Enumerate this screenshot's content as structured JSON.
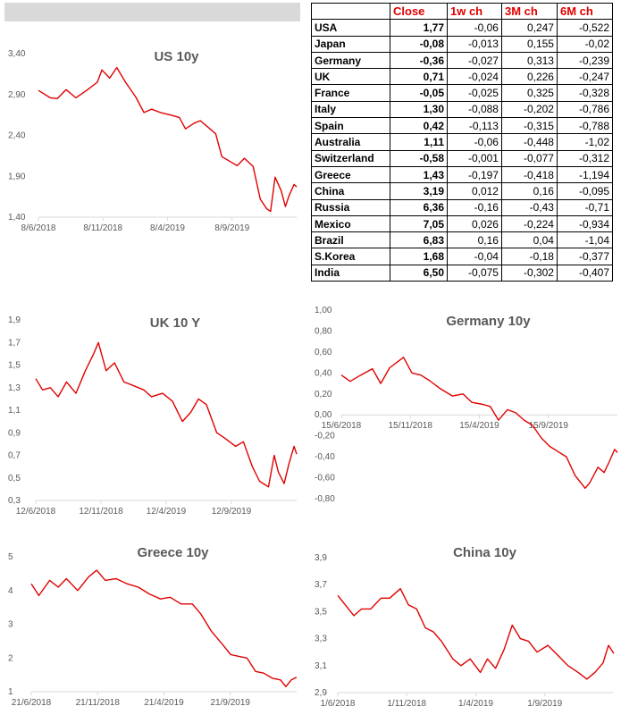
{
  "table": {
    "headers": [
      "",
      "Close",
      "1w ch",
      "3M ch",
      "6M ch"
    ],
    "rows": [
      [
        "USA",
        "1,77",
        "-0,06",
        "0,247",
        "-0,522"
      ],
      [
        "Japan",
        "-0,08",
        "-0,013",
        "0,155",
        "-0,02"
      ],
      [
        "Germany",
        "-0,36",
        "-0,027",
        "0,313",
        "-0,239"
      ],
      [
        "UK",
        "0,71",
        "-0,024",
        "0,226",
        "-0,247"
      ],
      [
        "France",
        "-0,05",
        "-0,025",
        "0,325",
        "-0,328"
      ],
      [
        "Italy",
        "1,30",
        "-0,088",
        "-0,202",
        "-0,786"
      ],
      [
        "Spain",
        "0,42",
        "-0,113",
        "-0,315",
        "-0,788"
      ],
      [
        "Australia",
        "1,11",
        "-0,06",
        "-0,448",
        "-1,02"
      ],
      [
        "Switzerland",
        "-0,58",
        "-0,001",
        "-0,077",
        "-0,312"
      ],
      [
        "Greece",
        "1,43",
        "-0,197",
        "-0,418",
        "-1,194"
      ],
      [
        "China",
        "3,19",
        "0,012",
        "0,16",
        "-0,095"
      ],
      [
        "Russia",
        "6,36",
        "-0,16",
        "-0,43",
        "-0,71"
      ],
      [
        "Mexico",
        "7,05",
        "0,026",
        "-0,224",
        "-0,934"
      ],
      [
        "Brazil",
        "6,83",
        "0,16",
        "0,04",
        "-1,04"
      ],
      [
        "S.Korea",
        "1,68",
        "-0,04",
        "-0,18",
        "-0,377"
      ],
      [
        "India",
        "6,50",
        "-0,075",
        "-0,302",
        "-0,407"
      ]
    ]
  },
  "colors": {
    "line": "#e00000",
    "header_text": "#e00000",
    "title_text": "#595959",
    "axis": "#d9d9d9",
    "top_bar": "#d9d9d9"
  },
  "chart_data": [
    {
      "id": "us",
      "type": "line",
      "title": "US 10y",
      "xlabel": "",
      "ylabel": "",
      "ylim": [
        1.4,
        3.4
      ],
      "y_ticks": [
        "1,40",
        "1,90",
        "2,40",
        "2,90",
        "3,40"
      ],
      "x_ticks": [
        "8/6/2018",
        "8/11/2018",
        "8/4/2019",
        "8/9/2019"
      ],
      "x_range": [
        "2018-06-08",
        "2019-10-25"
      ],
      "series": [
        {
          "x": [
            "2018-06-08",
            "2018-07-01",
            "2018-07-15",
            "2018-08-01",
            "2018-08-20",
            "2018-09-10",
            "2018-10-01",
            "2018-10-10",
            "2018-10-25",
            "2018-11-08",
            "2018-11-25",
            "2018-12-15",
            "2018-12-31",
            "2019-01-15",
            "2019-02-01",
            "2019-02-20",
            "2019-03-10",
            "2019-03-22",
            "2019-04-08",
            "2019-04-20",
            "2019-05-05",
            "2019-05-20",
            "2019-06-01",
            "2019-06-20",
            "2019-07-01",
            "2019-07-15",
            "2019-08-01",
            "2019-08-15",
            "2019-08-28",
            "2019-09-04",
            "2019-09-13",
            "2019-09-25",
            "2019-10-03",
            "2019-10-10",
            "2019-10-20",
            "2019-10-25"
          ],
          "values": [
            2.95,
            2.86,
            2.85,
            2.96,
            2.86,
            2.95,
            3.05,
            3.2,
            3.1,
            3.23,
            3.05,
            2.87,
            2.68,
            2.72,
            2.68,
            2.65,
            2.62,
            2.48,
            2.55,
            2.58,
            2.5,
            2.42,
            2.14,
            2.07,
            2.03,
            2.12,
            2.02,
            1.62,
            1.5,
            1.47,
            1.89,
            1.72,
            1.53,
            1.66,
            1.8,
            1.77
          ]
        }
      ]
    },
    {
      "id": "uk",
      "type": "line",
      "title": "UK 10 Y",
      "xlabel": "",
      "ylabel": "",
      "ylim": [
        0.3,
        1.9
      ],
      "y_ticks": [
        "0,3",
        "0,5",
        "0,7",
        "0,9",
        "1,1",
        "1,3",
        "1,5",
        "1,7",
        "1,9"
      ],
      "x_ticks": [
        "12/6/2018",
        "12/11/2018",
        "12/4/2019",
        "12/9/2019"
      ],
      "x_range": [
        "2018-06-12",
        "2019-10-25"
      ],
      "series": [
        {
          "x": [
            "2018-06-12",
            "2018-06-25",
            "2018-07-10",
            "2018-07-25",
            "2018-08-10",
            "2018-08-28",
            "2018-09-15",
            "2018-10-01",
            "2018-10-10",
            "2018-10-25",
            "2018-11-10",
            "2018-11-28",
            "2018-12-15",
            "2019-01-05",
            "2019-01-20",
            "2019-02-10",
            "2019-03-01",
            "2019-03-20",
            "2019-04-05",
            "2019-04-20",
            "2019-05-05",
            "2019-05-25",
            "2019-06-10",
            "2019-06-30",
            "2019-07-15",
            "2019-08-01",
            "2019-08-15",
            "2019-09-01",
            "2019-09-12",
            "2019-09-20",
            "2019-10-01",
            "2019-10-10",
            "2019-10-20",
            "2019-10-25"
          ],
          "values": [
            1.38,
            1.28,
            1.3,
            1.22,
            1.35,
            1.25,
            1.45,
            1.6,
            1.7,
            1.45,
            1.52,
            1.35,
            1.32,
            1.28,
            1.22,
            1.25,
            1.18,
            1.0,
            1.08,
            1.2,
            1.15,
            0.9,
            0.85,
            0.78,
            0.82,
            0.6,
            0.47,
            0.42,
            0.7,
            0.55,
            0.45,
            0.62,
            0.78,
            0.71
          ]
        }
      ]
    },
    {
      "id": "germany",
      "type": "line",
      "title": "Germany 10y",
      "xlabel": "",
      "ylabel": "",
      "ylim": [
        -0.8,
        1.0
      ],
      "y_ticks": [
        "-0,80",
        "-0,60",
        "-0,40",
        "-0,20",
        "0,00",
        "0,20",
        "0,40",
        "0,60",
        "0,80",
        "1,00"
      ],
      "x_ticks": [
        "15/6/2018",
        "15/11/2018",
        "15/4/2019",
        "15/9/2019"
      ],
      "x_range": [
        "2018-06-15",
        "2019-10-25"
      ],
      "series": [
        {
          "x": [
            "2018-06-15",
            "2018-07-01",
            "2018-07-20",
            "2018-08-10",
            "2018-08-25",
            "2018-09-10",
            "2018-10-05",
            "2018-10-20",
            "2018-11-05",
            "2018-11-20",
            "2018-12-10",
            "2019-01-01",
            "2019-01-20",
            "2019-02-05",
            "2019-02-25",
            "2019-03-10",
            "2019-03-25",
            "2019-04-10",
            "2019-04-25",
            "2019-05-10",
            "2019-05-25",
            "2019-06-10",
            "2019-06-25",
            "2019-07-10",
            "2019-07-25",
            "2019-08-10",
            "2019-08-28",
            "2019-09-05",
            "2019-09-20",
            "2019-10-01",
            "2019-10-10",
            "2019-10-20",
            "2019-10-25"
          ],
          "values": [
            0.38,
            0.32,
            0.38,
            0.44,
            0.3,
            0.45,
            0.55,
            0.4,
            0.38,
            0.33,
            0.25,
            0.18,
            0.2,
            0.12,
            0.1,
            0.08,
            -0.05,
            0.05,
            0.02,
            -0.05,
            -0.1,
            -0.22,
            -0.3,
            -0.35,
            -0.4,
            -0.58,
            -0.7,
            -0.65,
            -0.5,
            -0.55,
            -0.45,
            -0.33,
            -0.36
          ]
        }
      ]
    },
    {
      "id": "greece",
      "type": "line",
      "title": "Greece 10y",
      "xlabel": "",
      "ylabel": "",
      "ylim": [
        1,
        5
      ],
      "y_ticks": [
        "1",
        "2",
        "3",
        "4",
        "5"
      ],
      "x_ticks": [
        "21/6/2018",
        "21/11/2018",
        "21/4/2019",
        "21/9/2019"
      ],
      "x_range": [
        "2018-06-21",
        "2019-10-25"
      ],
      "series": [
        {
          "x": [
            "2018-06-21",
            "2018-07-05",
            "2018-07-25",
            "2018-08-10",
            "2018-08-25",
            "2018-09-15",
            "2018-10-05",
            "2018-10-20",
            "2018-11-05",
            "2018-11-25",
            "2018-12-15",
            "2019-01-05",
            "2019-01-25",
            "2019-02-15",
            "2019-03-05",
            "2019-03-25",
            "2019-04-15",
            "2019-05-01",
            "2019-05-20",
            "2019-06-10",
            "2019-06-25",
            "2019-07-10",
            "2019-07-25",
            "2019-08-10",
            "2019-08-25",
            "2019-09-10",
            "2019-09-25",
            "2019-10-05",
            "2019-10-15",
            "2019-10-25"
          ],
          "values": [
            4.2,
            3.85,
            4.3,
            4.1,
            4.35,
            4.0,
            4.4,
            4.6,
            4.3,
            4.35,
            4.2,
            4.1,
            3.9,
            3.75,
            3.8,
            3.6,
            3.6,
            3.3,
            2.8,
            2.4,
            2.1,
            2.05,
            2.0,
            1.6,
            1.55,
            1.4,
            1.35,
            1.15,
            1.35,
            1.43
          ]
        }
      ]
    },
    {
      "id": "china",
      "type": "line",
      "title": "China 10y",
      "xlabel": "",
      "ylabel": "",
      "ylim": [
        2.9,
        3.9
      ],
      "y_ticks": [
        "2,9",
        "3,1",
        "3,3",
        "3,5",
        "3,7",
        "3,9"
      ],
      "x_ticks": [
        "1/6/2018",
        "1/11/2018",
        "1/4/2019",
        "1/9/2019"
      ],
      "x_range": [
        "2018-06-01",
        "2019-10-25"
      ],
      "series": [
        {
          "x": [
            "2018-06-01",
            "2018-06-15",
            "2018-07-01",
            "2018-07-15",
            "2018-08-01",
            "2018-08-20",
            "2018-09-05",
            "2018-09-25",
            "2018-10-10",
            "2018-10-25",
            "2018-11-10",
            "2018-11-25",
            "2018-12-10",
            "2018-12-31",
            "2019-01-15",
            "2019-02-01",
            "2019-02-20",
            "2019-03-05",
            "2019-03-20",
            "2019-04-05",
            "2019-04-20",
            "2019-05-05",
            "2019-05-20",
            "2019-06-05",
            "2019-06-25",
            "2019-07-15",
            "2019-08-01",
            "2019-08-20",
            "2019-09-05",
            "2019-09-20",
            "2019-10-05",
            "2019-10-15",
            "2019-10-25"
          ],
          "values": [
            3.62,
            3.55,
            3.47,
            3.52,
            3.52,
            3.6,
            3.6,
            3.67,
            3.55,
            3.52,
            3.38,
            3.35,
            3.28,
            3.15,
            3.1,
            3.15,
            3.05,
            3.15,
            3.08,
            3.22,
            3.4,
            3.3,
            3.28,
            3.2,
            3.25,
            3.17,
            3.1,
            3.05,
            3.0,
            3.05,
            3.12,
            3.25,
            3.19
          ]
        }
      ]
    }
  ]
}
